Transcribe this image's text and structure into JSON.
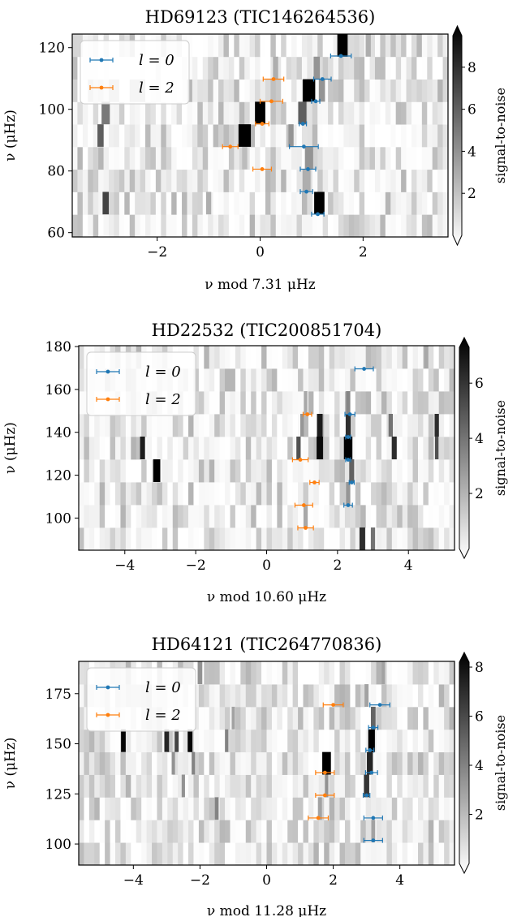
{
  "colors": {
    "l0": "#1f77b4",
    "l2": "#ff7f0e",
    "colormap": "gray_r"
  },
  "legend": {
    "l0": "l = 0",
    "l2": "l = 2",
    "position": "top-left"
  },
  "colorbar_label": "signal-to-noise",
  "chart_data": [
    {
      "type": "heatmap",
      "title": "HD69123 (TIC146264536)",
      "xlabel": "ν mod 7.31 μHz",
      "ylabel": "ν (μHz)",
      "xlim": [
        -3.65,
        3.65
      ],
      "ylim": [
        58.6,
        124.4
      ],
      "xticks": [
        -2,
        0,
        2
      ],
      "yticks": [
        60,
        80,
        100,
        120
      ],
      "dnu": 7.31,
      "colorbar": {
        "min": 0,
        "max": 9.5,
        "ticks": [
          2,
          4,
          6,
          8
        ]
      },
      "series": [
        {
          "name": "l = 0",
          "points": [
            {
              "x": 1.12,
              "y": 66.0,
              "xerr": 0.12
            },
            {
              "x": 0.9,
              "y": 73.3,
              "xerr": 0.12
            },
            {
              "x": 0.93,
              "y": 80.6,
              "xerr": 0.15
            },
            {
              "x": 0.85,
              "y": 87.9,
              "xerr": 0.28
            },
            {
              "x": 0.83,
              "y": 95.3,
              "xerr": 0.07
            },
            {
              "x": 1.08,
              "y": 102.6,
              "xerr": 0.08
            },
            {
              "x": 1.21,
              "y": 109.8,
              "xerr": 0.17
            },
            {
              "x": 1.57,
              "y": 117.3,
              "xerr": 0.2
            }
          ]
        },
        {
          "name": "l = 2",
          "points": [
            {
              "x": 0.04,
              "y": 80.6,
              "xerr": 0.18
            },
            {
              "x": -0.58,
              "y": 87.9,
              "xerr": 0.15
            },
            {
              "x": 0.04,
              "y": 95.3,
              "xerr": 0.13
            },
            {
              "x": 0.22,
              "y": 102.6,
              "xerr": 0.22
            },
            {
              "x": 0.26,
              "y": 109.8,
              "xerr": 0.2
            }
          ]
        }
      ],
      "heatmap": {
        "rows": 9,
        "row_start": 58.6,
        "row_height": 7.31,
        "peaks": [
          {
            "row": 1,
            "x": 1.15,
            "w": 0.1,
            "v": 9.5
          },
          {
            "row": 1,
            "x": -3.0,
            "w": 0.06,
            "v": 7
          },
          {
            "row": 1,
            "x": -1.0,
            "w": 0.05,
            "v": 3
          },
          {
            "row": 2,
            "x": 0.9,
            "w": 0.08,
            "v": 3
          },
          {
            "row": 3,
            "x": 0.95,
            "w": 0.08,
            "v": 4
          },
          {
            "row": 3,
            "x": -0.3,
            "w": 0.05,
            "v": 2.5
          },
          {
            "row": 4,
            "x": -0.3,
            "w": 0.12,
            "v": 9.5
          },
          {
            "row": 4,
            "x": -3.1,
            "w": 0.06,
            "v": 6
          },
          {
            "row": 4,
            "x": 0.6,
            "w": 0.05,
            "v": 4
          },
          {
            "row": 5,
            "x": 0.0,
            "w": 0.1,
            "v": 9.5
          },
          {
            "row": 5,
            "x": 0.82,
            "w": 0.08,
            "v": 6
          },
          {
            "row": 5,
            "x": -3.0,
            "w": 0.08,
            "v": 5
          },
          {
            "row": 6,
            "x": 0.95,
            "w": 0.12,
            "v": 9.5
          },
          {
            "row": 6,
            "x": 1.2,
            "w": 0.06,
            "v": 4
          },
          {
            "row": 7,
            "x": 1.1,
            "w": 0.06,
            "v": 4
          },
          {
            "row": 7,
            "x": 0.3,
            "w": 0.05,
            "v": 3
          },
          {
            "row": 8,
            "x": 1.6,
            "w": 0.1,
            "v": 9.5
          },
          {
            "row": 8,
            "x": 2.1,
            "w": 0.05,
            "v": 3
          }
        ]
      }
    },
    {
      "type": "heatmap",
      "title": "HD22532 (TIC200851704)",
      "xlabel": "ν mod 10.60 μHz",
      "ylabel": "ν (μHz)",
      "xlim": [
        -5.3,
        5.3
      ],
      "ylim": [
        85.0,
        180.4
      ],
      "xticks": [
        -4,
        -2,
        0,
        2,
        4
      ],
      "yticks": [
        100,
        120,
        140,
        160,
        180
      ],
      "dnu": 10.6,
      "colorbar": {
        "min": 0,
        "max": 7.3,
        "ticks": [
          2,
          4,
          6
        ]
      },
      "series": [
        {
          "name": "l = 0",
          "points": [
            {
              "x": 2.3,
              "y": 106.0,
              "xerr": 0.12
            },
            {
              "x": 2.4,
              "y": 116.6,
              "xerr": 0.07
            },
            {
              "x": 2.3,
              "y": 127.2,
              "xerr": 0.07
            },
            {
              "x": 2.3,
              "y": 137.8,
              "xerr": 0.07
            },
            {
              "x": 2.35,
              "y": 148.4,
              "xerr": 0.14
            },
            {
              "x": 2.75,
              "y": 169.6,
              "xerr": 0.26
            }
          ]
        },
        {
          "name": "l = 2",
          "points": [
            {
              "x": 1.1,
              "y": 95.4,
              "xerr": 0.22
            },
            {
              "x": 1.05,
              "y": 106.0,
              "xerr": 0.25
            },
            {
              "x": 1.35,
              "y": 116.6,
              "xerr": 0.13
            },
            {
              "x": 0.95,
              "y": 127.2,
              "xerr": 0.22
            },
            {
              "x": 1.15,
              "y": 148.4,
              "xerr": 0.12
            }
          ]
        }
      ],
      "heatmap": {
        "rows": 9,
        "row_start": 85.0,
        "row_height": 10.6,
        "peaks": [
          {
            "row": 0,
            "x": 2.7,
            "w": 0.08,
            "v": 6
          },
          {
            "row": 0,
            "x": 3.0,
            "w": 0.06,
            "v": 4
          },
          {
            "row": 1,
            "x": 1.1,
            "w": 0.06,
            "v": 2.5
          },
          {
            "row": 2,
            "x": 2.3,
            "w": 0.06,
            "v": 3
          },
          {
            "row": 3,
            "x": -3.1,
            "w": 0.1,
            "v": 7.3
          },
          {
            "row": 3,
            "x": 2.4,
            "w": 0.07,
            "v": 4.5
          },
          {
            "row": 4,
            "x": -3.5,
            "w": 0.07,
            "v": 6.5
          },
          {
            "row": 4,
            "x": 1.5,
            "w": 0.09,
            "v": 7
          },
          {
            "row": 4,
            "x": 2.3,
            "w": 0.12,
            "v": 7.3
          },
          {
            "row": 4,
            "x": 0.9,
            "w": 0.06,
            "v": 5
          },
          {
            "row": 4,
            "x": 3.6,
            "w": 0.07,
            "v": 6
          },
          {
            "row": 4,
            "x": 4.8,
            "w": 0.05,
            "v": 5
          },
          {
            "row": 5,
            "x": 1.5,
            "w": 0.08,
            "v": 6.5
          },
          {
            "row": 5,
            "x": 2.3,
            "w": 0.07,
            "v": 6
          },
          {
            "row": 5,
            "x": 3.5,
            "w": 0.06,
            "v": 4
          },
          {
            "row": 5,
            "x": 4.8,
            "w": 0.06,
            "v": 6
          },
          {
            "row": 5,
            "x": 1.0,
            "w": 0.05,
            "v": 3
          },
          {
            "row": 6,
            "x": 2.3,
            "w": 0.06,
            "v": 3.5
          },
          {
            "row": 6,
            "x": 1.1,
            "w": 0.05,
            "v": 2.5
          },
          {
            "row": 8,
            "x": 4.5,
            "w": 0.06,
            "v": 2.5
          }
        ]
      }
    },
    {
      "type": "heatmap",
      "title": "HD64121 (TIC264770836)",
      "xlabel": "ν mod 11.28 μHz",
      "ylabel": "ν (μHz)",
      "xlim": [
        -5.64,
        5.64
      ],
      "ylim": [
        89.5,
        191.1
      ],
      "xticks": [
        -4,
        -2,
        0,
        2,
        4
      ],
      "yticks": [
        100,
        125,
        150,
        175
      ],
      "dnu": 11.28,
      "colorbar": {
        "min": 0,
        "max": 8.2,
        "ticks": [
          2,
          4,
          6,
          8
        ]
      },
      "series": [
        {
          "name": "l = 0",
          "points": [
            {
              "x": 3.2,
              "y": 101.8,
              "xerr": 0.28
            },
            {
              "x": 3.2,
              "y": 113.0,
              "xerr": 0.28
            },
            {
              "x": 3.0,
              "y": 124.3,
              "xerr": 0.1
            },
            {
              "x": 3.15,
              "y": 135.6,
              "xerr": 0.18
            },
            {
              "x": 3.1,
              "y": 146.8,
              "xerr": 0.12
            },
            {
              "x": 3.2,
              "y": 158.1,
              "xerr": 0.14
            },
            {
              "x": 3.4,
              "y": 169.4,
              "xerr": 0.3
            }
          ]
        },
        {
          "name": "l = 2",
          "points": [
            {
              "x": 1.55,
              "y": 113.0,
              "xerr": 0.3
            },
            {
              "x": 1.75,
              "y": 124.3,
              "xerr": 0.28
            },
            {
              "x": 1.75,
              "y": 135.6,
              "xerr": 0.28
            },
            {
              "x": 2.0,
              "y": 169.4,
              "xerr": 0.3
            }
          ]
        }
      ],
      "heatmap": {
        "rows": 9,
        "row_start": 89.5,
        "row_height": 11.28,
        "peaks": [
          {
            "row": 1,
            "x": 3.2,
            "w": 0.06,
            "v": 3
          },
          {
            "row": 2,
            "x": -1.5,
            "w": 0.06,
            "v": 4
          },
          {
            "row": 2,
            "x": 1.6,
            "w": 0.06,
            "v": 3
          },
          {
            "row": 3,
            "x": 3.0,
            "w": 0.08,
            "v": 6.5
          },
          {
            "row": 3,
            "x": -2.5,
            "w": 0.05,
            "v": 3.5
          },
          {
            "row": 3,
            "x": 1.8,
            "w": 0.05,
            "v": 3.5
          },
          {
            "row": 4,
            "x": 1.8,
            "w": 0.13,
            "v": 8.2
          },
          {
            "row": 4,
            "x": 3.1,
            "w": 0.09,
            "v": 7
          },
          {
            "row": 4,
            "x": -2.8,
            "w": 0.05,
            "v": 3.5
          },
          {
            "row": 4,
            "x": -2.2,
            "w": 0.05,
            "v": 4
          },
          {
            "row": 5,
            "x": -4.3,
            "w": 0.07,
            "v": 8
          },
          {
            "row": 5,
            "x": -3.0,
            "w": 0.07,
            "v": 7
          },
          {
            "row": 5,
            "x": -2.3,
            "w": 0.07,
            "v": 8
          },
          {
            "row": 5,
            "x": 3.15,
            "w": 0.1,
            "v": 8.2
          },
          {
            "row": 5,
            "x": -1.2,
            "w": 0.05,
            "v": 4
          },
          {
            "row": 5,
            "x": -2.7,
            "w": 0.06,
            "v": 6
          },
          {
            "row": 6,
            "x": 3.2,
            "w": 0.07,
            "v": 5
          },
          {
            "row": 6,
            "x": -1.0,
            "w": 0.05,
            "v": 3
          },
          {
            "row": 7,
            "x": 3.0,
            "w": 0.06,
            "v": 3
          },
          {
            "row": 8,
            "x": -2.0,
            "w": 0.07,
            "v": 3.5
          },
          {
            "row": 8,
            "x": 3.5,
            "w": 0.05,
            "v": 3
          }
        ]
      }
    }
  ]
}
